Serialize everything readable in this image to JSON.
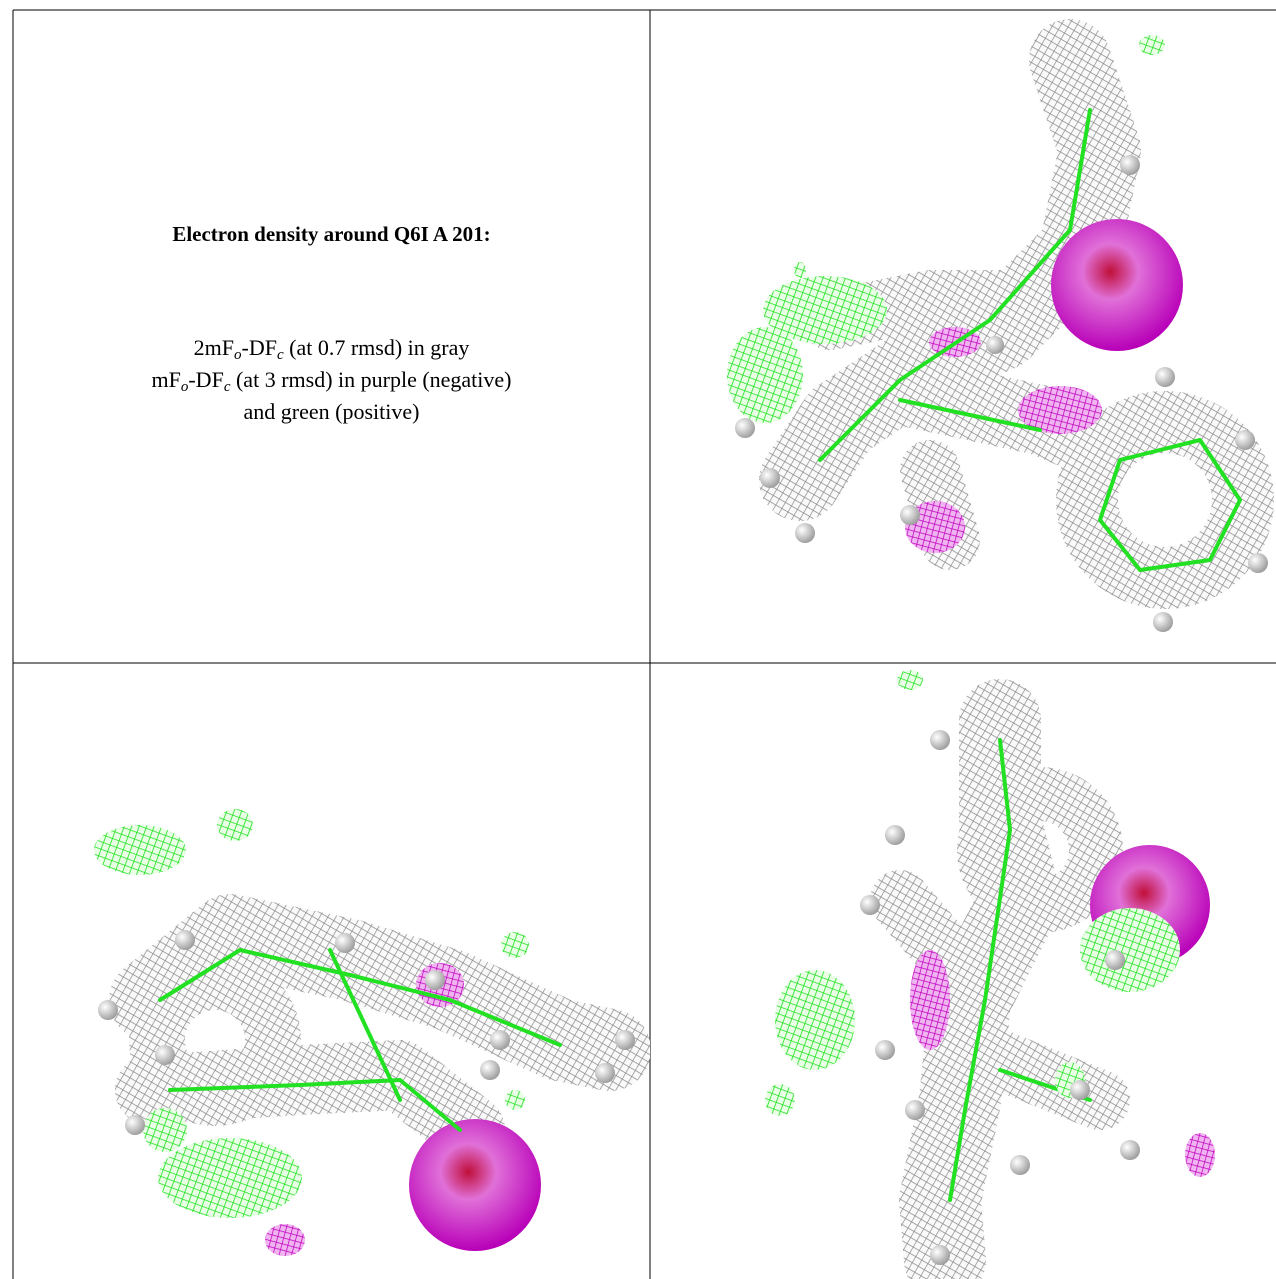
{
  "title": "Electron density around Q6I A 201:",
  "legend": [
    {
      "parts": [
        "2mF",
        "o",
        "-DF",
        "c",
        " (at 0.7 rmsd) in gray"
      ]
    },
    {
      "parts": [
        "mF",
        "o",
        "-DF",
        "c",
        " (at 3 rmsd) in purple (negative)"
      ]
    },
    {
      "text": "and green (positive)"
    }
  ]
}
